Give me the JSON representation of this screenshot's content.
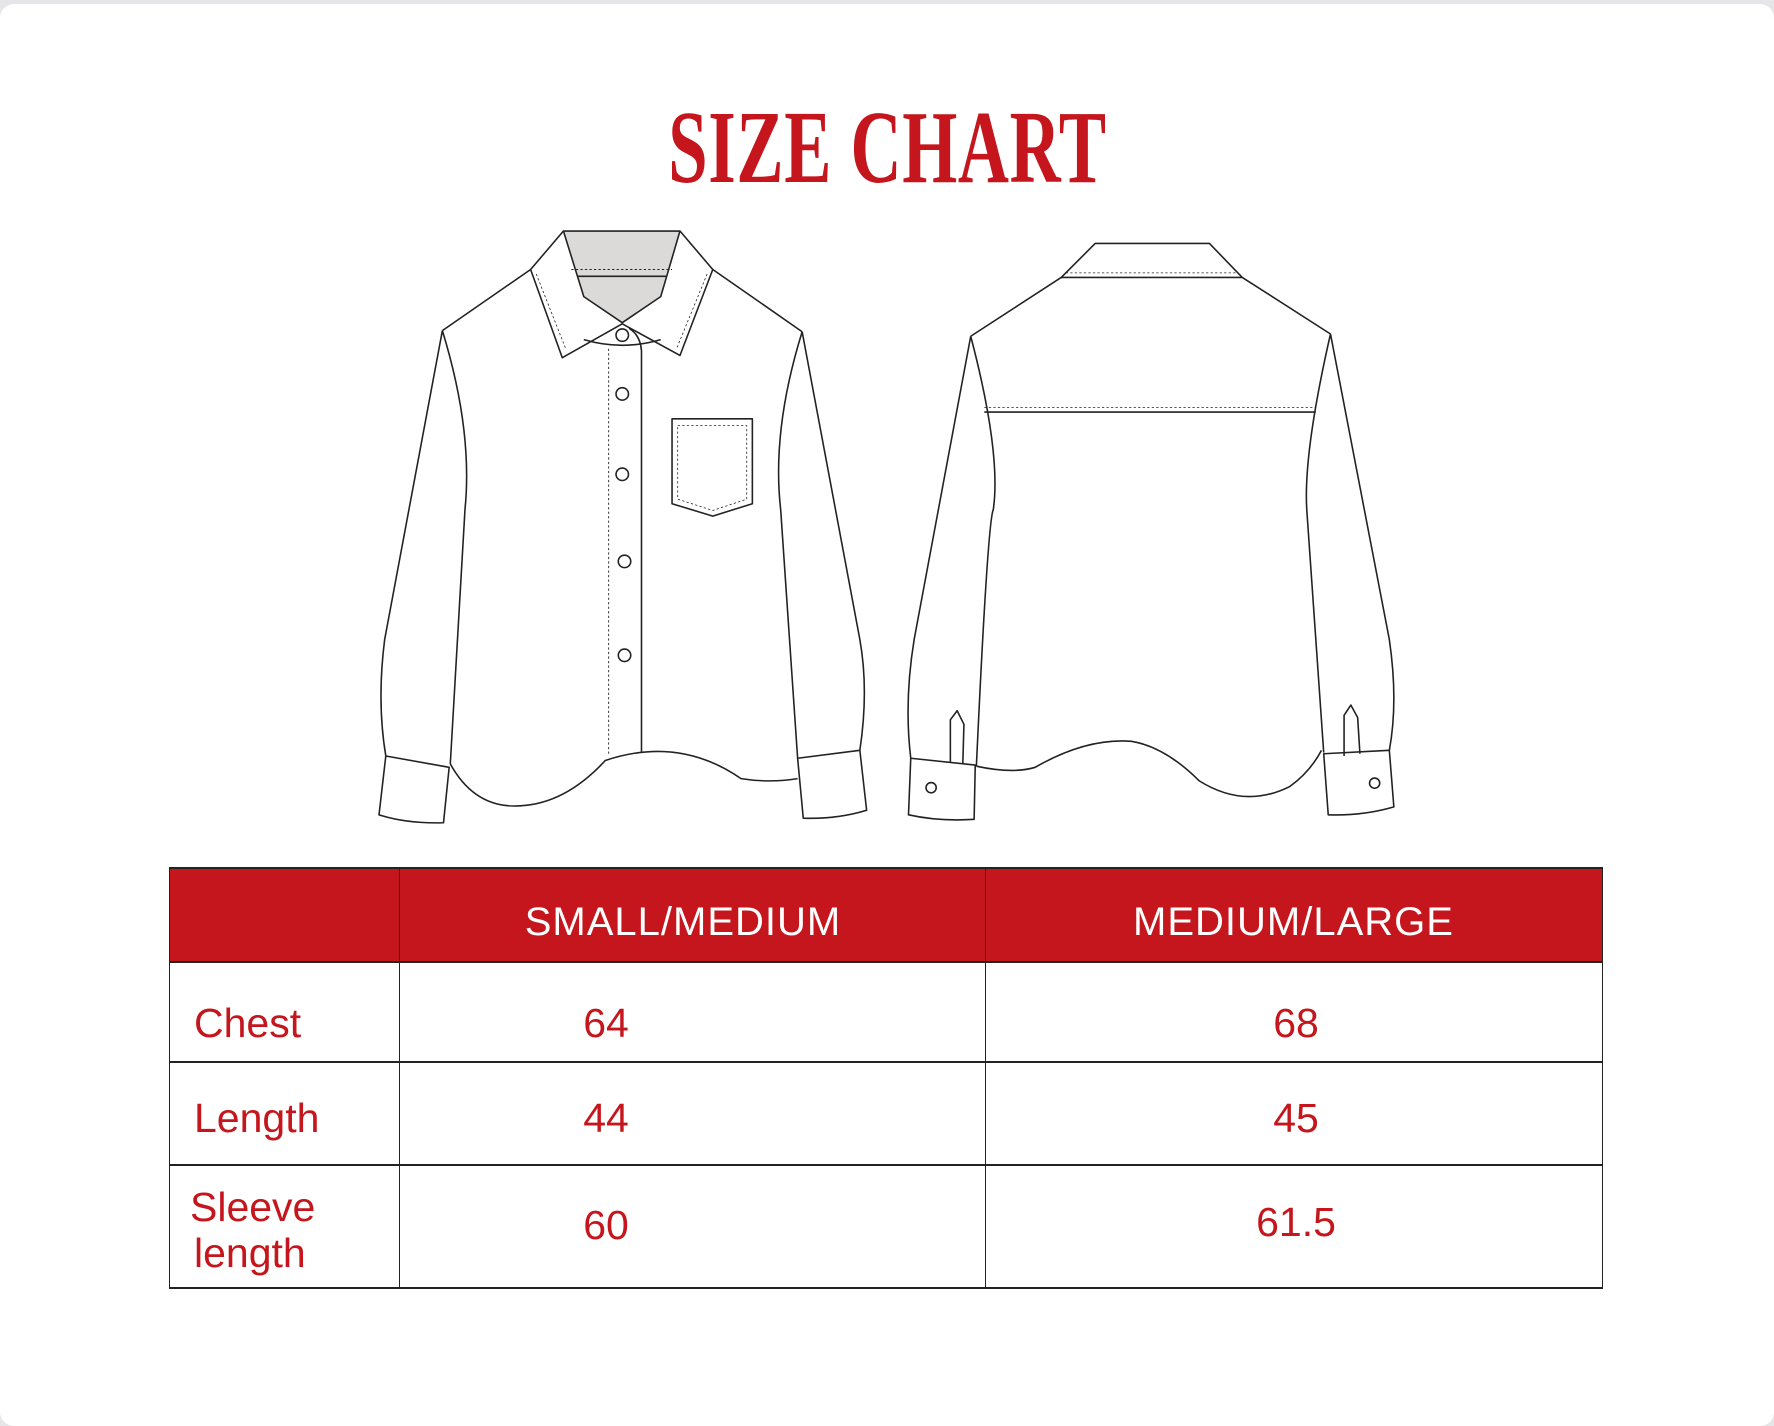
{
  "title": "SIZE CHART",
  "colors": {
    "accent": "#c4161c",
    "collar_fill": "#dcd9d9",
    "line": "#222222"
  },
  "illustrations": [
    "shirt-front",
    "shirt-back"
  ],
  "table": {
    "headers": [
      "",
      "SMALL/MEDIUM",
      "MEDIUM/LARGE"
    ],
    "rows": [
      {
        "label": "Chest",
        "values": [
          "64",
          "68"
        ]
      },
      {
        "label": "Length",
        "values": [
          "44",
          "45"
        ]
      },
      {
        "label_line1": "Sleeve",
        "label_line2": "length",
        "values": [
          "60",
          "61.5"
        ]
      }
    ]
  }
}
